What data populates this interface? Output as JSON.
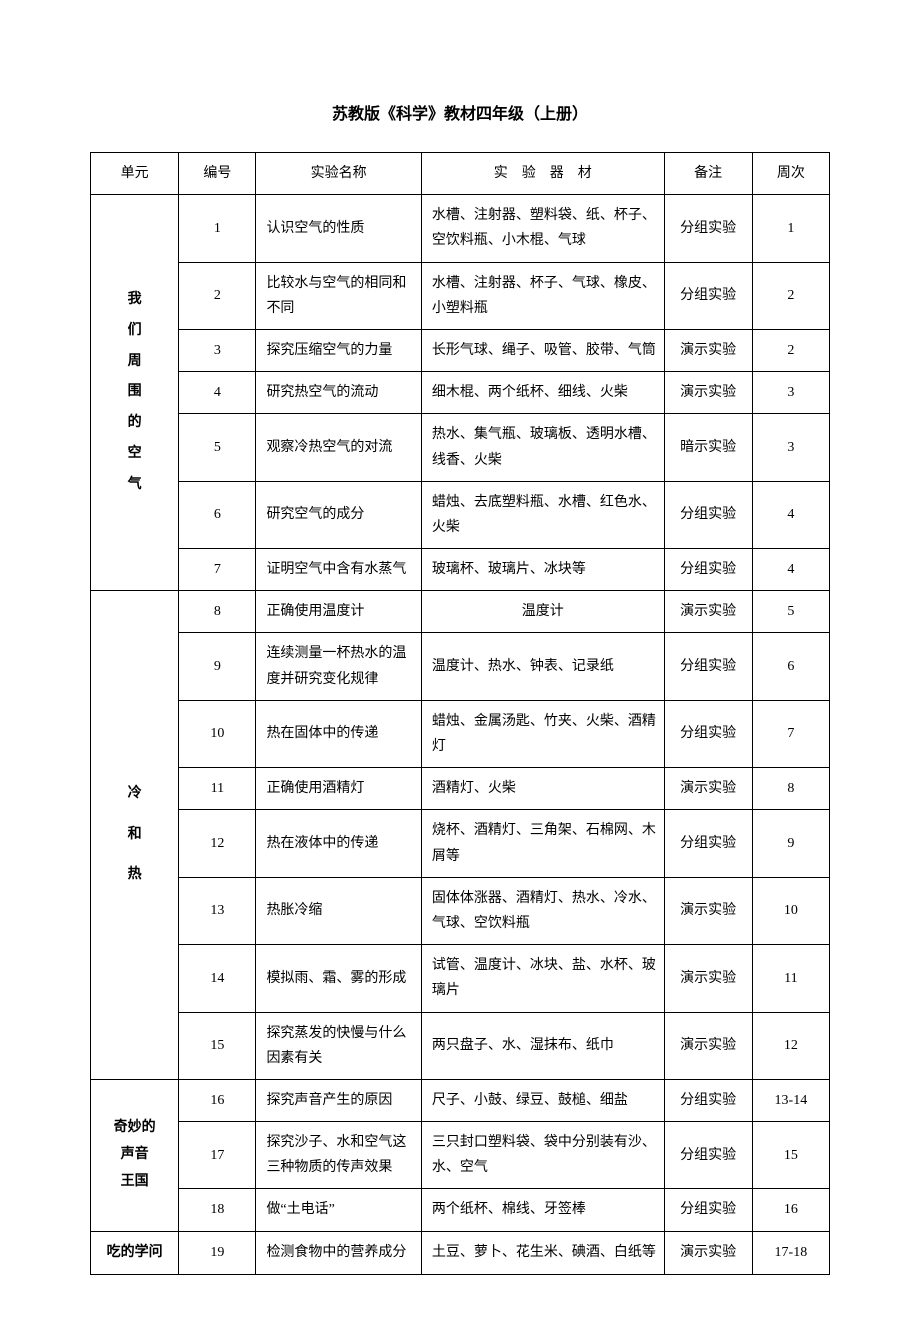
{
  "title": "苏教版《科学》教材四年级（上册）",
  "headers": {
    "unit": "单元",
    "num": "编号",
    "name": "实验名称",
    "material": "实　验　器　材",
    "note": "备注",
    "week": "周次"
  },
  "units": [
    {
      "label": "我\n们\n周\n围\n的\n空\n气",
      "start": 0,
      "span": 7
    },
    {
      "label": "冷\n\n和\n\n热",
      "start": 7,
      "span": 8
    },
    {
      "label": "奇妙的\n声音\n王国",
      "start": 15,
      "span": 3
    },
    {
      "label": "吃的学问",
      "start": 18,
      "span": 1
    }
  ],
  "rows": [
    {
      "num": "1",
      "name": "认识空气的性质",
      "material": "水槽、注射器、塑料袋、纸、杯子、空饮料瓶、小木棍、气球",
      "note": "分组实验",
      "week": "1"
    },
    {
      "num": "2",
      "name": "比较水与空气的相同和不同",
      "material": "水槽、注射器、杯子、气球、橡皮、小塑料瓶",
      "note": "分组实验",
      "week": "2"
    },
    {
      "num": "3",
      "name": "探究压缩空气的力量",
      "material": "长形气球、绳子、吸管、胶带、气筒",
      "note": "演示实验",
      "week": "2"
    },
    {
      "num": "4",
      "name": "研究热空气的流动",
      "material": "细木棍、两个纸杯、细线、火柴",
      "note": "演示实验",
      "week": "3"
    },
    {
      "num": "5",
      "name": "观察冷热空气的对流",
      "material": "热水、集气瓶、玻璃板、透明水槽、线香、火柴",
      "note": "暗示实验",
      "week": "3"
    },
    {
      "num": "6",
      "name": "研究空气的成分",
      "material": "蜡烛、去底塑料瓶、水槽、红色水、火柴",
      "note": "分组实验",
      "week": "4"
    },
    {
      "num": "7",
      "name": "证明空气中含有水蒸气",
      "material": "玻璃杯、玻璃片、冰块等",
      "note": "分组实验",
      "week": "4"
    },
    {
      "num": "8",
      "name": "正确使用温度计",
      "material": "温度计",
      "note": "演示实验",
      "week": "5",
      "material_center": true
    },
    {
      "num": "9",
      "name": "连续测量一杯热水的温度并研究变化规律",
      "material": "温度计、热水、钟表、记录纸",
      "note": "分组实验",
      "week": "6"
    },
    {
      "num": "10",
      "name": "热在固体中的传递",
      "material": "蜡烛、金属汤匙、竹夹、火柴、酒精灯",
      "note": "分组实验",
      "week": "7"
    },
    {
      "num": "11",
      "name": "正确使用酒精灯",
      "material": "酒精灯、火柴",
      "note": "演示实验",
      "week": "8"
    },
    {
      "num": "12",
      "name": "热在液体中的传递",
      "material": "烧杯、酒精灯、三角架、石棉网、木屑等",
      "note": "分组实验",
      "week": "9"
    },
    {
      "num": "13",
      "name": "热胀冷缩",
      "material": "固体体涨器、酒精灯、热水、冷水、气球、空饮料瓶",
      "note": "演示实验",
      "week": "10"
    },
    {
      "num": "14",
      "name": "模拟雨、霜、雾的形成",
      "material": "试管、温度计、冰块、盐、水杯、玻璃片",
      "note": "演示实验",
      "week": "11"
    },
    {
      "num": "15",
      "name": "探究蒸发的快慢与什么因素有关",
      "material": "两只盘子、水、湿抹布、纸巾",
      "note": "演示实验",
      "week": "12"
    },
    {
      "num": "16",
      "name": "探究声音产生的原因",
      "material": "尺子、小鼓、绿豆、鼓槌、细盐",
      "note": "分组实验",
      "week": "13-14"
    },
    {
      "num": "17",
      "name": "探究沙子、水和空气这三种物质的传声效果",
      "material": "三只封口塑料袋、袋中分别装有沙、水、空气",
      "note": "分组实验",
      "week": "15"
    },
    {
      "num": "18",
      "name": "做“土电话”",
      "material": "两个纸杯、棉线、牙签棒",
      "note": "分组实验",
      "week": "16"
    },
    {
      "num": "19",
      "name": "检测食物中的营养成分",
      "material": "土豆、萝卜、花生米、碘酒、白纸等",
      "note": "演示实验",
      "week": "17-18"
    }
  ]
}
